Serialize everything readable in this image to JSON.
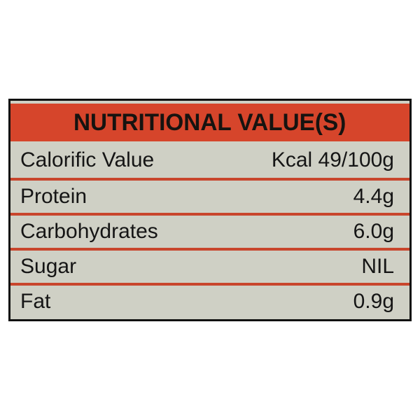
{
  "title": "NUTRITIONAL VALUE(S)",
  "colors": {
    "header": "#d6452b",
    "divider": "#c8452c",
    "background": "#cfd0c5",
    "border": "#111111"
  },
  "rows": [
    {
      "name": "Calorific Value",
      "value": "Kcal 49/100g"
    },
    {
      "name": "Protein",
      "value": "4.4g"
    },
    {
      "name": "Carbohydrates",
      "value": "6.0g"
    },
    {
      "name": "Sugar",
      "value": "NIL"
    },
    {
      "name": "Fat",
      "value": "0.9g"
    }
  ]
}
